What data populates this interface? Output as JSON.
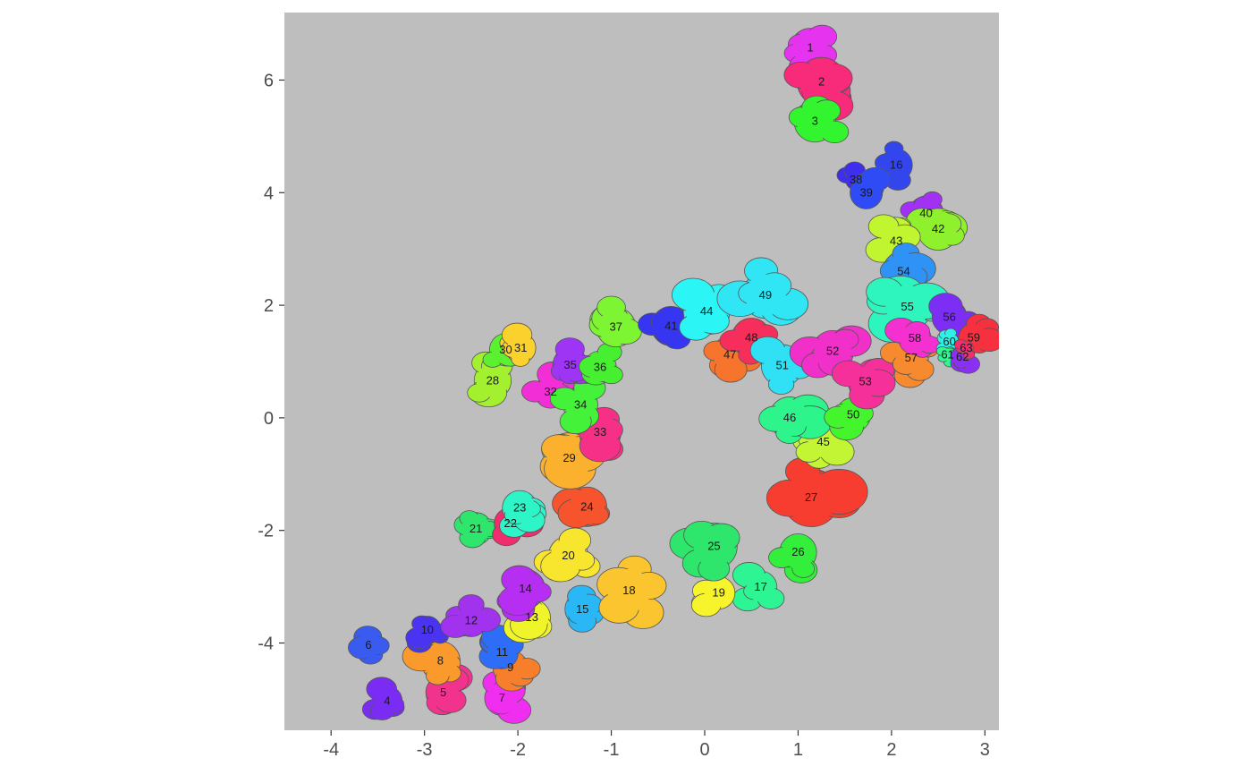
{
  "chart_data": {
    "type": "scatter",
    "title": "",
    "xlabel": "",
    "ylabel": "",
    "xlim": [
      -4.5,
      3.15
    ],
    "ylim": [
      -5.55,
      7.2
    ],
    "panel_color": "#bebebe",
    "grid": false,
    "legend": "none",
    "x_ticks": [
      {
        "value": -4,
        "label": "-4"
      },
      {
        "value": -3,
        "label": "-3"
      },
      {
        "value": -2,
        "label": "-2"
      },
      {
        "value": -1,
        "label": "-1"
      },
      {
        "value": 0,
        "label": "0"
      },
      {
        "value": 1,
        "label": "1"
      },
      {
        "value": 2,
        "label": "2"
      },
      {
        "value": 3,
        "label": "3"
      }
    ],
    "y_ticks": [
      {
        "value": -4,
        "label": "-4"
      },
      {
        "value": -2,
        "label": "-2"
      },
      {
        "value": 0,
        "label": "0"
      },
      {
        "value": 2,
        "label": "2"
      },
      {
        "value": 4,
        "label": "4"
      },
      {
        "value": 6,
        "label": "6"
      }
    ],
    "clusters": [
      {
        "id": "1",
        "x": 1.13,
        "y": 6.57,
        "color": "#e633f0",
        "r": 0.34
      },
      {
        "id": "2",
        "x": 1.25,
        "y": 5.97,
        "color": "#f82a7a",
        "r": 0.42
      },
      {
        "id": "3",
        "x": 1.18,
        "y": 5.27,
        "color": "#33f52f",
        "r": 0.36
      },
      {
        "id": "4",
        "x": -3.4,
        "y": -5.03,
        "color": "#7a2cf5",
        "r": 0.26
      },
      {
        "id": "5",
        "x": -2.8,
        "y": -4.88,
        "color": "#f2338e",
        "r": 0.3
      },
      {
        "id": "6",
        "x": -3.6,
        "y": -4.04,
        "color": "#3a5bf0",
        "r": 0.24
      },
      {
        "id": "7",
        "x": -2.17,
        "y": -4.98,
        "color": "#f02ef0",
        "r": 0.3
      },
      {
        "id": "8",
        "x": -2.83,
        "y": -4.32,
        "color": "#fa9a2c",
        "r": 0.34
      },
      {
        "id": "9",
        "x": -2.08,
        "y": -4.44,
        "color": "#f77f2c",
        "r": 0.3
      },
      {
        "id": "10",
        "x": -2.97,
        "y": -3.77,
        "color": "#4b33f2",
        "r": 0.24
      },
      {
        "id": "11",
        "x": -2.17,
        "y": -4.17,
        "color": "#2d6df7",
        "r": 0.28
      },
      {
        "id": "12",
        "x": -2.5,
        "y": -3.6,
        "color": "#a133ee",
        "r": 0.28
      },
      {
        "id": "13",
        "x": -1.85,
        "y": -3.55,
        "color": "#f0f52a",
        "r": 0.32
      },
      {
        "id": "14",
        "x": -1.92,
        "y": -3.04,
        "color": "#b52ef2",
        "r": 0.34
      },
      {
        "id": "15",
        "x": -1.31,
        "y": -3.4,
        "color": "#2ab7f5",
        "r": 0.3
      },
      {
        "id": "16",
        "x": 2.05,
        "y": 4.49,
        "color": "#3346ee",
        "r": 0.28
      },
      {
        "id": "17",
        "x": 0.6,
        "y": -3.01,
        "color": "#2ef593",
        "r": 0.28
      },
      {
        "id": "18",
        "x": -0.81,
        "y": -3.07,
        "color": "#fbc52f",
        "r": 0.42
      },
      {
        "id": "19",
        "x": 0.15,
        "y": -3.11,
        "color": "#f7f42c",
        "r": 0.28
      },
      {
        "id": "20",
        "x": -1.46,
        "y": -2.45,
        "color": "#f8e52d",
        "r": 0.34
      },
      {
        "id": "21",
        "x": -2.45,
        "y": -1.97,
        "color": "#2ee66b",
        "r": 0.28
      },
      {
        "id": "22",
        "x": -2.08,
        "y": -1.88,
        "color": "#f02d6d",
        "r": 0.28
      },
      {
        "id": "23",
        "x": -1.98,
        "y": -1.6,
        "color": "#2ef5c8",
        "r": 0.3
      },
      {
        "id": "24",
        "x": -1.26,
        "y": -1.58,
        "color": "#f7532d",
        "r": 0.34
      },
      {
        "id": "25",
        "x": 0.1,
        "y": -2.28,
        "color": "#2ee66b",
        "r": 0.4
      },
      {
        "id": "26",
        "x": 1.0,
        "y": -2.39,
        "color": "#33ee3a",
        "r": 0.32
      },
      {
        "id": "27",
        "x": 1.14,
        "y": -1.42,
        "color": "#f73d2f",
        "r": 0.5
      },
      {
        "id": "28",
        "x": -2.27,
        "y": 0.66,
        "color": "#a2f02e",
        "r": 0.32
      },
      {
        "id": "29",
        "x": -1.45,
        "y": -0.72,
        "color": "#fbb12e",
        "r": 0.44
      },
      {
        "id": "30",
        "x": -2.13,
        "y": 1.21,
        "color": "#5bf030",
        "r": 0.28
      },
      {
        "id": "31",
        "x": -1.97,
        "y": 1.24,
        "color": "#fbd22d",
        "r": 0.26
      },
      {
        "id": "32",
        "x": -1.65,
        "y": 0.46,
        "color": "#f22ed7",
        "r": 0.28
      },
      {
        "id": "33",
        "x": -1.12,
        "y": -0.26,
        "color": "#f73087",
        "r": 0.36
      },
      {
        "id": "34",
        "x": -1.33,
        "y": 0.23,
        "color": "#45f23a",
        "r": 0.3
      },
      {
        "id": "35",
        "x": -1.44,
        "y": 0.94,
        "color": "#9e35f5",
        "r": 0.3
      },
      {
        "id": "36",
        "x": -1.12,
        "y": 0.9,
        "color": "#46f030",
        "r": 0.28
      },
      {
        "id": "37",
        "x": -0.95,
        "y": 1.61,
        "color": "#7df532",
        "r": 0.34
      },
      {
        "id": "38",
        "x": 1.62,
        "y": 4.23,
        "color": "#3d2ef0",
        "r": 0.18
      },
      {
        "id": "39",
        "x": 1.73,
        "y": 4.0,
        "color": "#2e4bf5",
        "r": 0.28
      },
      {
        "id": "40",
        "x": 2.37,
        "y": 3.63,
        "color": "#a330f5",
        "r": 0.3
      },
      {
        "id": "41",
        "x": -0.36,
        "y": 1.63,
        "color": "#3535f2",
        "r": 0.34
      },
      {
        "id": "42",
        "x": 2.5,
        "y": 3.35,
        "color": "#8ff02e",
        "r": 0.36
      },
      {
        "id": "43",
        "x": 2.05,
        "y": 3.14,
        "color": "#c1f52f",
        "r": 0.3
      },
      {
        "id": "44",
        "x": 0.02,
        "y": 1.89,
        "color": "#2bf5f5",
        "r": 0.4
      },
      {
        "id": "45",
        "x": 1.27,
        "y": -0.43,
        "color": "#c3f535",
        "r": 0.3
      },
      {
        "id": "46",
        "x": 0.91,
        "y": 0.0,
        "color": "#2ef58b",
        "r": 0.36
      },
      {
        "id": "47",
        "x": 0.27,
        "y": 1.12,
        "color": "#f7742d",
        "r": 0.32
      },
      {
        "id": "48",
        "x": 0.5,
        "y": 1.42,
        "color": "#f72e5b",
        "r": 0.34
      },
      {
        "id": "49",
        "x": 0.65,
        "y": 2.18,
        "color": "#30e6f5",
        "r": 0.4
      },
      {
        "id": "50",
        "x": 1.59,
        "y": 0.05,
        "color": "#44f52e",
        "r": 0.3
      },
      {
        "id": "51",
        "x": 0.83,
        "y": 0.93,
        "color": "#30e0f5",
        "r": 0.36
      },
      {
        "id": "52",
        "x": 1.37,
        "y": 1.18,
        "color": "#f030c8",
        "r": 0.36
      },
      {
        "id": "53",
        "x": 1.72,
        "y": 0.64,
        "color": "#f5309b",
        "r": 0.3
      },
      {
        "id": "54",
        "x": 2.13,
        "y": 2.6,
        "color": "#2e93f5",
        "r": 0.36
      },
      {
        "id": "55",
        "x": 2.17,
        "y": 1.97,
        "color": "#2ef5bd",
        "r": 0.42
      },
      {
        "id": "56",
        "x": 2.62,
        "y": 1.79,
        "color": "#7d2ef5",
        "r": 0.3
      },
      {
        "id": "57",
        "x": 2.21,
        "y": 1.06,
        "color": "#f78a2f",
        "r": 0.3
      },
      {
        "id": "58",
        "x": 2.25,
        "y": 1.41,
        "color": "#f530d0",
        "r": 0.28
      },
      {
        "id": "59",
        "x": 2.88,
        "y": 1.42,
        "color": "#f73040",
        "r": 0.26
      },
      {
        "id": "60",
        "x": 2.62,
        "y": 1.35,
        "color": "#30f0e6",
        "r": 0.16
      },
      {
        "id": "61",
        "x": 2.6,
        "y": 1.12,
        "color": "#30f590",
        "r": 0.12
      },
      {
        "id": "62",
        "x": 2.76,
        "y": 1.08,
        "color": "#8a30f5",
        "r": 0.2
      },
      {
        "id": "63",
        "x": 2.8,
        "y": 1.24,
        "color": "#f0306e",
        "r": 0.12
      }
    ]
  }
}
